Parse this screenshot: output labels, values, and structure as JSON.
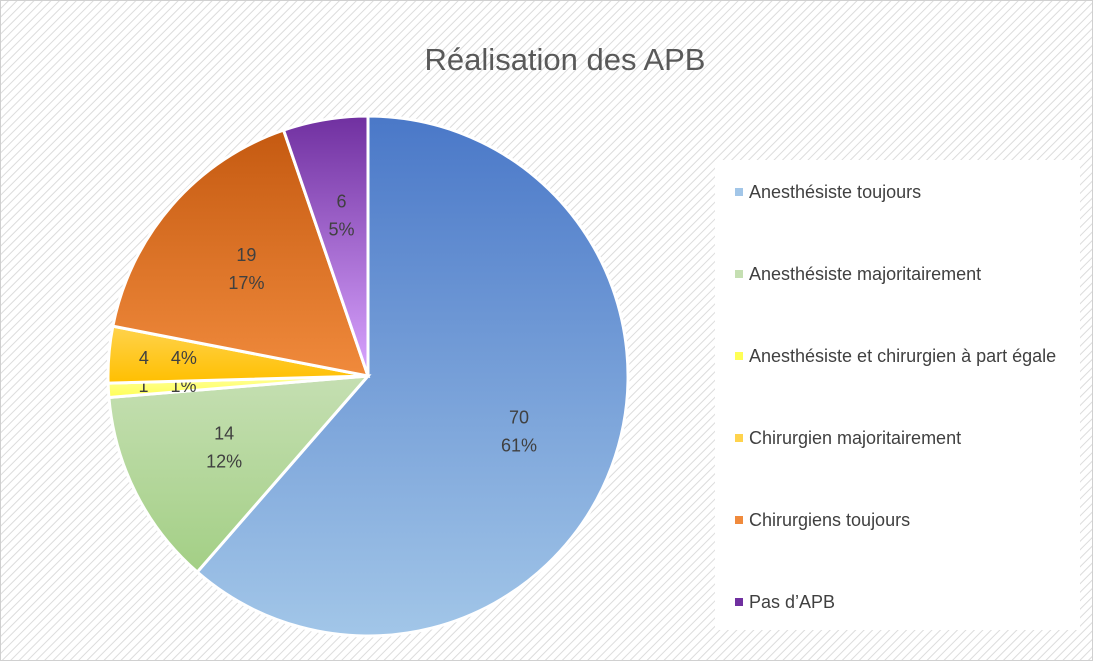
{
  "chart_data": {
    "type": "pie",
    "title": "Réalisation des APB",
    "categories": [
      "Anesthésiste toujours",
      "Anesthésiste majoritairement",
      "Anesthésiste et chirurgien à part égale",
      "Chirurgien majoritairement",
      "Chirurgiens toujours",
      "Pas d’APB"
    ],
    "values": [
      70,
      14,
      1,
      4,
      19,
      6
    ],
    "percents": [
      61,
      12,
      1,
      4,
      17,
      5
    ],
    "percent_labels": [
      "61%",
      "12%",
      "1%",
      "4%",
      "17%",
      "5%"
    ],
    "colors": [
      [
        "#4a78c8",
        "#a2c6e8"
      ],
      [
        "#c5dfb2",
        "#a3cf85"
      ],
      [
        "#ffff99",
        "#ffff55"
      ],
      [
        "#ffd34d",
        "#ffbf00"
      ],
      [
        "#c55a11",
        "#f08a3c"
      ],
      [
        "#7030a0",
        "#d9a5ff"
      ]
    ],
    "legend": "right"
  }
}
